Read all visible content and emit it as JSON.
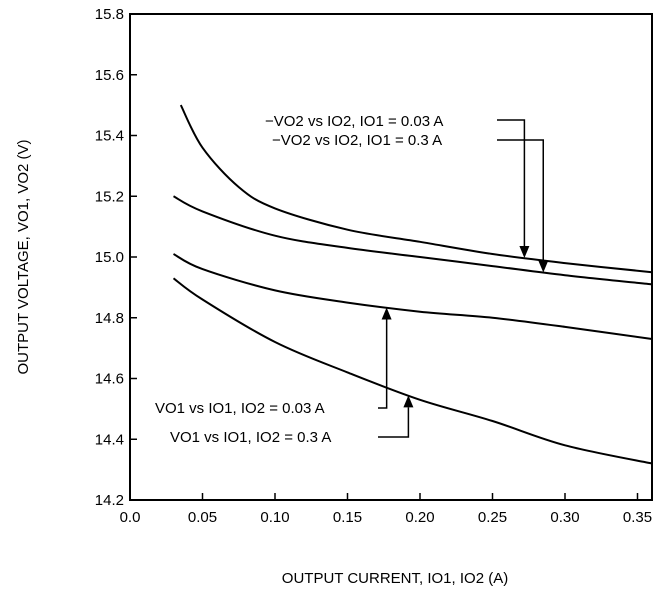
{
  "chart_data": {
    "type": "line",
    "xlabel": "OUTPUT CURRENT, IO1, IO2 (A)",
    "ylabel": "OUTPUT VOLTAGE, VO1, VO2 (V)",
    "xlim": [
      0.0,
      0.36
    ],
    "ylim": [
      14.2,
      15.8
    ],
    "x_ticks": [
      "0.0",
      "0.05",
      "0.10",
      "0.15",
      "0.20",
      "0.25",
      "0.30",
      "0.35"
    ],
    "x_tick_values": [
      0.0,
      0.05,
      0.1,
      0.15,
      0.2,
      0.25,
      0.3,
      0.35
    ],
    "y_ticks": [
      "14.2",
      "14.4",
      "14.6",
      "14.8",
      "15.0",
      "15.2",
      "15.4",
      "15.6",
      "15.8"
    ],
    "y_tick_values": [
      14.2,
      14.4,
      14.6,
      14.8,
      15.0,
      15.2,
      15.4,
      15.6,
      15.8
    ],
    "grid": false,
    "series": [
      {
        "name": "-VO2 vs IO2, IO1 = 0.03 A",
        "x": [
          0.035,
          0.05,
          0.075,
          0.1,
          0.15,
          0.2,
          0.25,
          0.3,
          0.36
        ],
        "y": [
          15.5,
          15.36,
          15.23,
          15.16,
          15.09,
          15.05,
          15.01,
          14.98,
          14.95
        ]
      },
      {
        "name": "-VO2 vs IO2, IO1 = 0.3 A",
        "x": [
          0.03,
          0.05,
          0.1,
          0.15,
          0.2,
          0.25,
          0.3,
          0.36
        ],
        "y": [
          15.2,
          15.15,
          15.07,
          15.03,
          15.0,
          14.97,
          14.94,
          14.91
        ]
      },
      {
        "name": "VO1 vs IO1, IO2 = 0.03 A",
        "x": [
          0.03,
          0.05,
          0.1,
          0.15,
          0.2,
          0.25,
          0.3,
          0.36
        ],
        "y": [
          15.01,
          14.96,
          14.89,
          14.85,
          14.82,
          14.8,
          14.77,
          14.73
        ]
      },
      {
        "name": "VO1 vs IO1, IO2 = 0.3 A",
        "x": [
          0.03,
          0.05,
          0.1,
          0.15,
          0.2,
          0.25,
          0.3,
          0.36
        ],
        "y": [
          14.93,
          14.86,
          14.72,
          14.62,
          14.53,
          14.46,
          14.38,
          14.32
        ]
      }
    ],
    "annotations": [
      {
        "text": "−VO2 vs IO2, IO1 = 0.03 A",
        "target_series": 0,
        "target_x": 0.272
      },
      {
        "text": "−VO2 vs IO2, IO1 = 0.3 A",
        "target_series": 1,
        "target_x": 0.285
      },
      {
        "text": "VO1 vs IO1, IO2 = 0.03 A",
        "target_series": 2,
        "target_x": 0.177
      },
      {
        "text": "VO1 vs IO1, IO2 = 0.3 A",
        "target_series": 3,
        "target_x": 0.192
      }
    ]
  }
}
